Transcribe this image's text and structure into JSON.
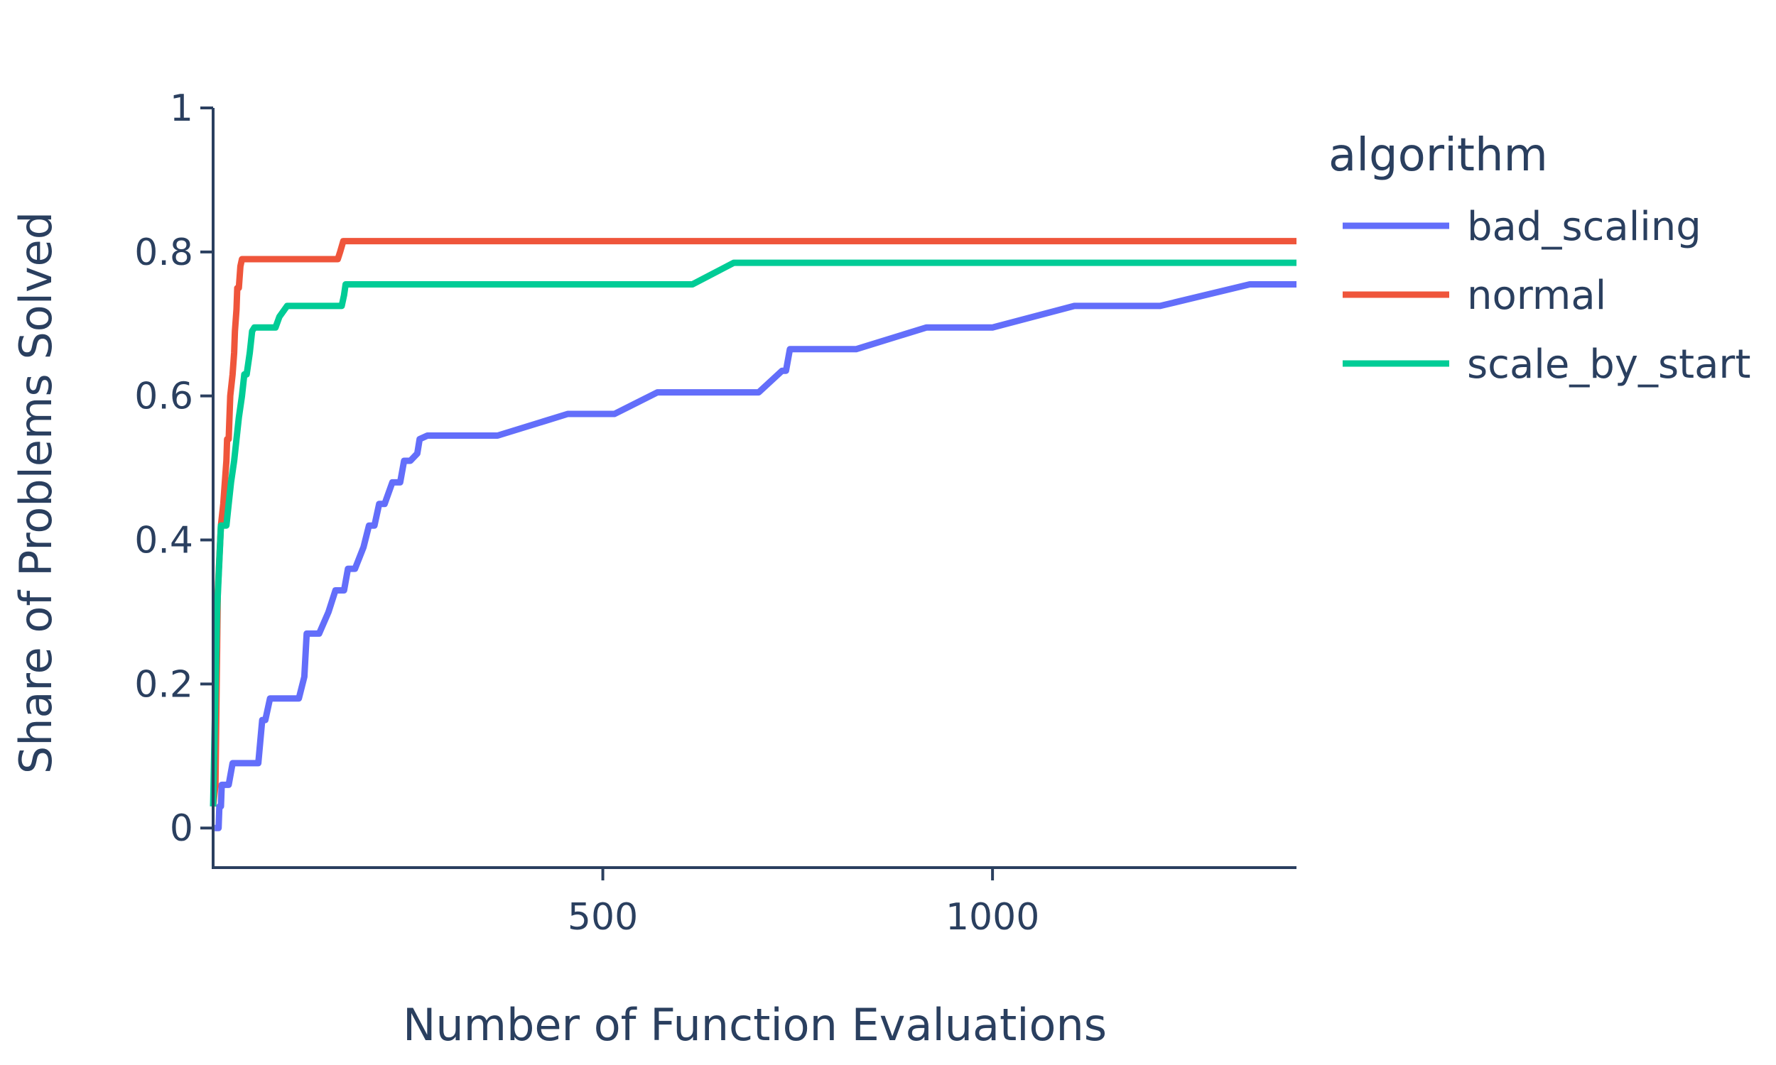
{
  "chart_data": {
    "type": "line",
    "title": "",
    "xlabel": "Number of Function Evaluations",
    "ylabel": "Share of Problems Solved",
    "xlim": [
      0,
      1390
    ],
    "ylim": [
      -0.055,
      1
    ],
    "x_ticks": [
      {
        "value": 500,
        "label": "500"
      },
      {
        "value": 1000,
        "label": "1000"
      }
    ],
    "y_ticks": [
      {
        "value": 0,
        "label": "0"
      },
      {
        "value": 0.2,
        "label": "0.2"
      },
      {
        "value": 0.4,
        "label": "0.4"
      },
      {
        "value": 0.6,
        "label": "0.6"
      },
      {
        "value": 0.8,
        "label": "0.8"
      },
      {
        "value": 1,
        "label": "1"
      }
    ],
    "grid": false,
    "legend": {
      "title": "algorithm",
      "position": "top-right"
    },
    "series": [
      {
        "name": "bad_scaling",
        "color": "#636efa",
        "x": [
          2,
          7,
          8,
          10,
          11,
          15,
          20,
          25,
          58,
          63,
          67,
          73,
          78,
          110,
          117,
          120,
          136,
          148,
          157,
          168,
          173,
          182,
          193,
          200,
          207,
          213,
          220,
          230,
          240,
          245,
          253,
          262,
          265,
          275,
          280,
          290,
          365,
          455,
          515,
          570,
          700,
          730,
          735,
          740,
          825,
          915,
          1000,
          1105,
          1215,
          1330,
          1390
        ],
        "y": [
          0,
          0,
          0.03,
          0.03,
          0.06,
          0.06,
          0.06,
          0.09,
          0.09,
          0.15,
          0.15,
          0.18,
          0.18,
          0.18,
          0.21,
          0.27,
          0.27,
          0.3,
          0.33,
          0.33,
          0.36,
          0.36,
          0.39,
          0.42,
          0.42,
          0.45,
          0.45,
          0.48,
          0.48,
          0.51,
          0.51,
          0.52,
          0.54,
          0.545,
          0.545,
          0.545,
          0.545,
          0.575,
          0.575,
          0.605,
          0.605,
          0.635,
          0.635,
          0.665,
          0.665,
          0.695,
          0.695,
          0.725,
          0.725,
          0.755,
          0.755
        ]
      },
      {
        "name": "normal",
        "color": "#ef553b",
        "x": [
          0,
          3,
          6,
          10,
          13,
          15,
          17,
          18,
          20,
          21,
          22,
          25,
          27,
          28,
          30,
          31,
          33,
          35,
          37,
          40,
          160,
          163,
          167,
          1390
        ],
        "y": [
          0.03,
          0.06,
          0.33,
          0.42,
          0.45,
          0.48,
          0.51,
          0.54,
          0.54,
          0.57,
          0.6,
          0.63,
          0.66,
          0.69,
          0.72,
          0.75,
          0.75,
          0.78,
          0.79,
          0.79,
          0.79,
          0.8,
          0.815,
          0.815
        ]
      },
      {
        "name": "scale_by_start",
        "color": "#00cc96",
        "x": [
          0,
          5,
          10,
          12,
          17,
          20,
          23,
          27,
          30,
          33,
          37,
          40,
          43,
          47,
          50,
          53,
          57,
          60,
          80,
          85,
          95,
          165,
          168,
          170,
          615,
          668,
          1390
        ],
        "y": [
          0.03,
          0.3,
          0.42,
          0.42,
          0.42,
          0.45,
          0.48,
          0.51,
          0.54,
          0.57,
          0.6,
          0.63,
          0.63,
          0.66,
          0.69,
          0.695,
          0.695,
          0.695,
          0.695,
          0.71,
          0.725,
          0.725,
          0.74,
          0.755,
          0.755,
          0.785,
          0.785
        ]
      }
    ]
  }
}
